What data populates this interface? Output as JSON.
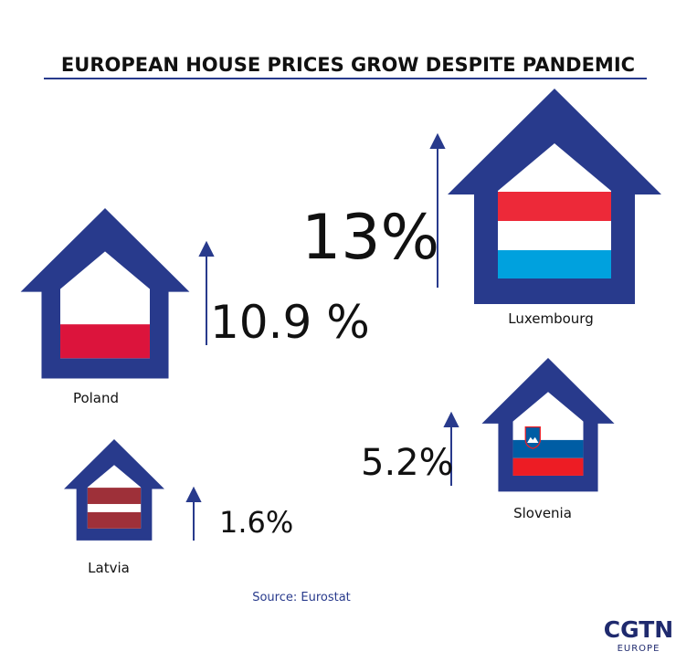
{
  "header": {
    "title": "EUROPEAN HOUSE PRICES GROW DESPITE PANDEMIC"
  },
  "items": [
    {
      "country": "Luxembourg",
      "label": "13%"
    },
    {
      "country": "Poland",
      "label": "10.9 %"
    },
    {
      "country": "Slovenia",
      "label": "5.2%"
    },
    {
      "country": "Latvia",
      "label": "1.6%"
    }
  ],
  "footer": {
    "source": "Source: Eurostat",
    "logo": "CGTN",
    "logo_sub": "EUROPE"
  }
}
